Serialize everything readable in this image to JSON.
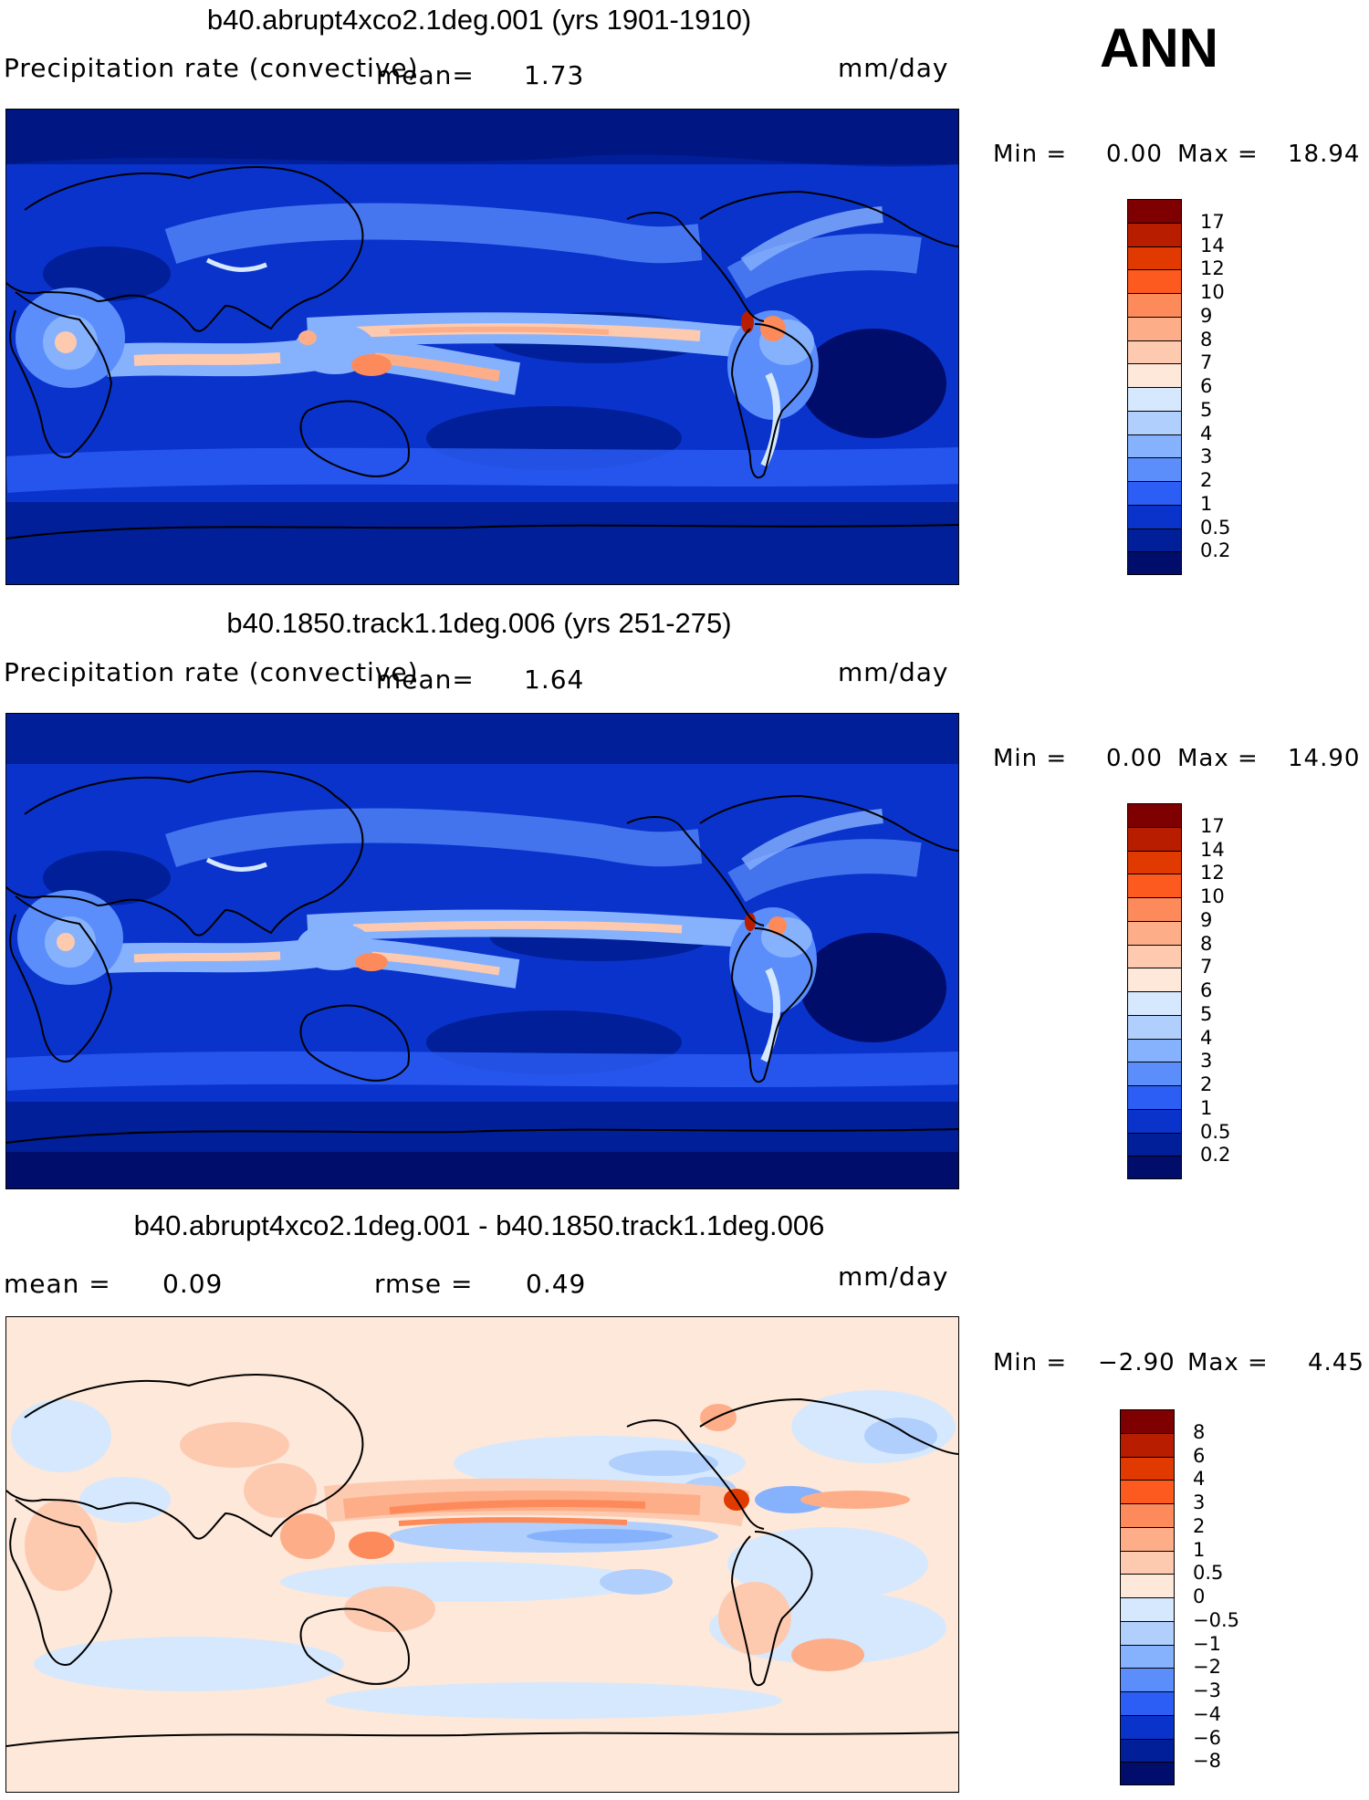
{
  "season_label": "ANN",
  "panels": [
    {
      "title": "b40.abrupt4xco2.1deg.001 (yrs 1901-1910)",
      "variable": "Precipitation rate (convective)",
      "stat_label": "mean=",
      "stat_value": "1.73",
      "units": "mm/day",
      "min_label": "Min =",
      "min_value": "0.00",
      "max_label": "Max =",
      "max_value": "18.94",
      "colorbar": {
        "labels": [
          "17",
          "14",
          "12",
          "10",
          "9",
          "8",
          "7",
          "6",
          "5",
          "4",
          "3",
          "2",
          "1",
          "0.5",
          "0.2"
        ],
        "colors": [
          "#7f0000",
          "#b81d00",
          "#e03a00",
          "#fd5a20",
          "#fd8a5a",
          "#fdae88",
          "#fdcab0",
          "#fde8da",
          "#d6e8fd",
          "#b0cffd",
          "#86b2fd",
          "#5b8efb",
          "#2c5ef5",
          "#0a33cc",
          "#001f99",
          "#000d6b"
        ]
      }
    },
    {
      "title": "b40.1850.track1.1deg.006 (yrs 251-275)",
      "variable": "Precipitation rate (convective)",
      "stat_label": "mean=",
      "stat_value": "1.64",
      "units": "mm/day",
      "min_label": "Min =",
      "min_value": "0.00",
      "max_label": "Max =",
      "max_value": "14.90",
      "colorbar": {
        "labels": [
          "17",
          "14",
          "12",
          "10",
          "9",
          "8",
          "7",
          "6",
          "5",
          "4",
          "3",
          "2",
          "1",
          "0.5",
          "0.2"
        ],
        "colors": [
          "#7f0000",
          "#b81d00",
          "#e03a00",
          "#fd5a20",
          "#fd8a5a",
          "#fdae88",
          "#fdcab0",
          "#fde8da",
          "#d6e8fd",
          "#b0cffd",
          "#86b2fd",
          "#5b8efb",
          "#2c5ef5",
          "#0a33cc",
          "#001f99",
          "#000d6b"
        ]
      }
    },
    {
      "title": "b40.abrupt4xco2.1deg.001 - b40.1850.track1.1deg.006",
      "mean_label": "mean =",
      "mean_value": "0.09",
      "rmse_label": "rmse =",
      "rmse_value": "0.49",
      "units": "mm/day",
      "min_label": "Min =",
      "min_value": "−2.90",
      "max_label": "Max =",
      "max_value": "4.45",
      "colorbar": {
        "labels": [
          "8",
          "6",
          "4",
          "3",
          "2",
          "1",
          "0.5",
          "0",
          "−0.5",
          "−1",
          "−2",
          "−3",
          "−4",
          "−6",
          "−8"
        ],
        "colors": [
          "#7f0000",
          "#b81d00",
          "#e03a00",
          "#fd5a20",
          "#fd8a5a",
          "#fdae88",
          "#fdcab0",
          "#fde8da",
          "#d6e8fd",
          "#b0cffd",
          "#86b2fd",
          "#5b8efb",
          "#2c5ef5",
          "#0a33cc",
          "#001f99",
          "#000d6b"
        ]
      }
    }
  ],
  "colors": {
    "deep_blue": "#000d6b",
    "mid_blue": "#0a33cc",
    "light_blue": "#86b2fd",
    "pale_peach": "#fde8da",
    "orange": "#fd8a5a",
    "dark_red": "#b81d00"
  }
}
